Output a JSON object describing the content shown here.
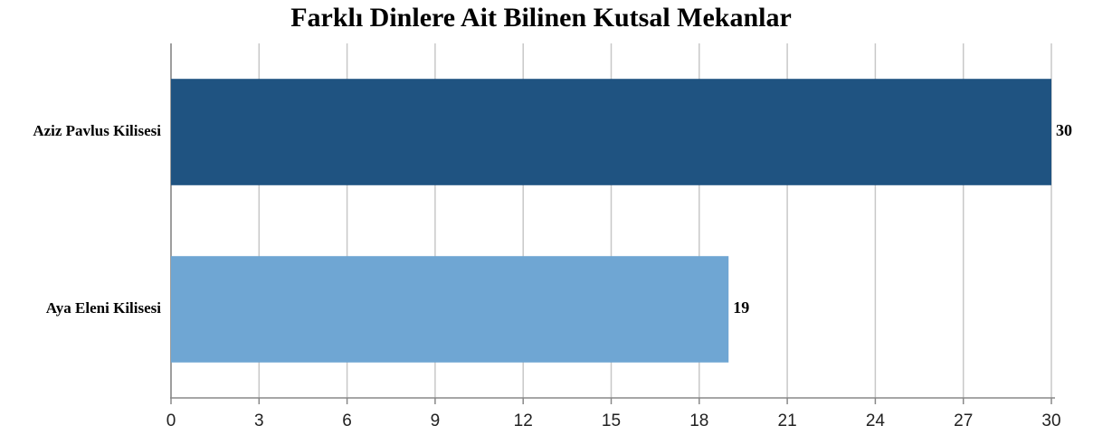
{
  "chart_data": {
    "type": "barh",
    "title": "Farklı Dinlere Ait Bilinen Kutsal Mekanlar",
    "categories": [
      "Aziz Pavlus Kilisesi",
      "Aya Eleni Kilisesi"
    ],
    "values": [
      30,
      19
    ],
    "colors": [
      "#1f5381",
      "#6fa6d3"
    ],
    "xlim": [
      0,
      30
    ],
    "xticks": [
      0,
      3,
      6,
      9,
      12,
      15,
      18,
      21,
      24,
      27,
      30
    ],
    "grid": true
  }
}
